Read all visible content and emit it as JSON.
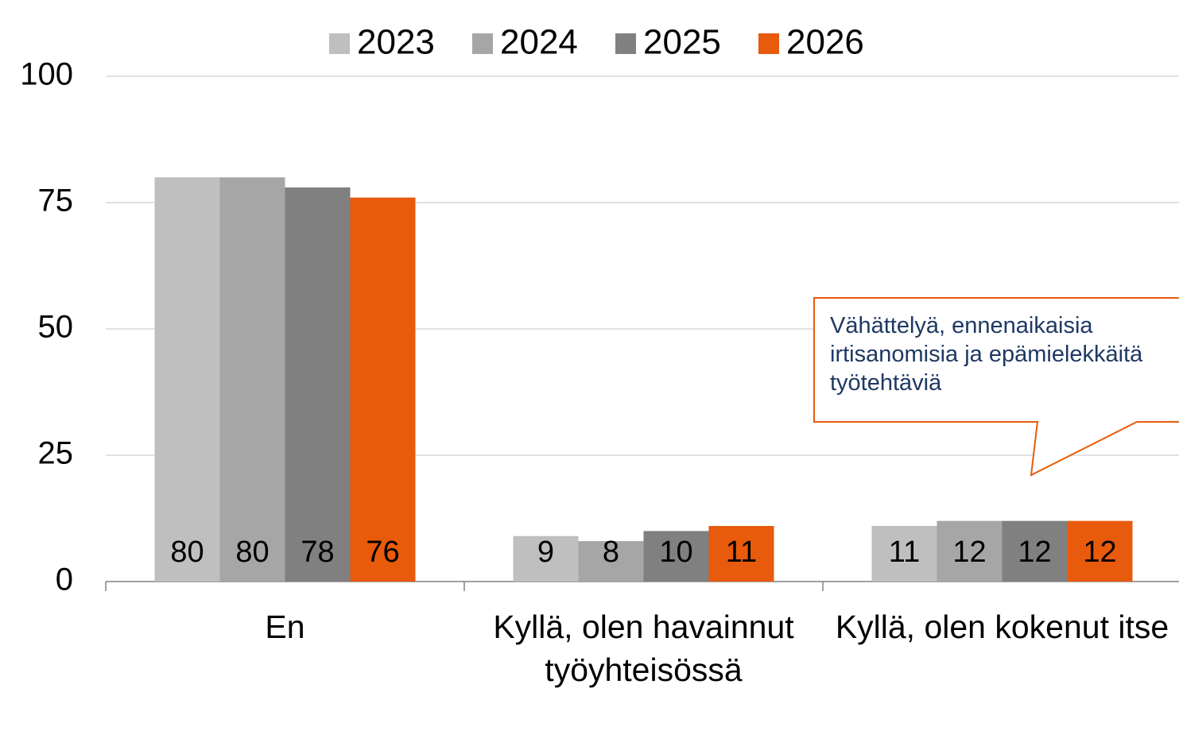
{
  "chart_data": {
    "type": "bar",
    "categories": [
      "En",
      "Kyllä, olen havainnut työyhteisössä",
      "Kyllä, olen kokenut itse"
    ],
    "series": [
      {
        "name": "2023",
        "color": "#bfbfbf",
        "values": [
          80,
          9,
          11
        ]
      },
      {
        "name": "2024",
        "color": "#a6a6a6",
        "values": [
          80,
          8,
          12
        ]
      },
      {
        "name": "2025",
        "color": "#808080",
        "values": [
          78,
          10,
          12
        ]
      },
      {
        "name": "2026",
        "color": "#e85a0c",
        "values": [
          76,
          11,
          12
        ]
      }
    ],
    "ylim": [
      0,
      100
    ],
    "yticks": [
      0,
      25,
      50,
      75,
      100
    ],
    "grid": true,
    "legend": "top",
    "annotation": "Vähättelyä, ennenaikaisia irtisanomisia ja epämielekkäitä työtehtäviä"
  }
}
